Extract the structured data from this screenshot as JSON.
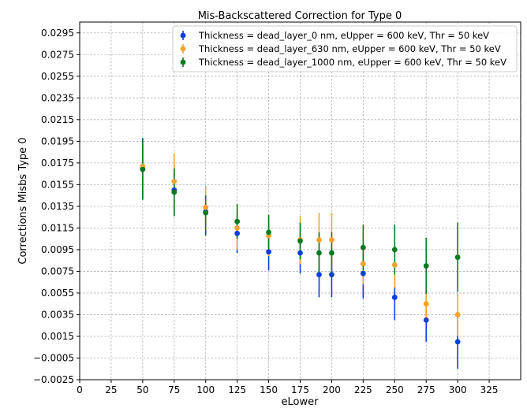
{
  "chart_data": {
    "type": "scatter",
    "title": "Mis-Backscattered Correction for Type 0",
    "xlabel": "eLower",
    "ylabel": "Corrections Misbs Type 0",
    "xlim": [
      0,
      350
    ],
    "ylim": [
      -0.0025,
      0.0305
    ],
    "xticks": [
      0,
      25,
      50,
      75,
      100,
      125,
      150,
      175,
      200,
      225,
      250,
      275,
      300,
      325
    ],
    "xtick_labels": [
      "0",
      "25",
      "50",
      "75",
      "100",
      "125",
      "150",
      "175",
      "200",
      "225",
      "250",
      "275",
      "300",
      "325"
    ],
    "yticks": [
      -0.0025,
      -0.0005,
      0.0015,
      0.0035,
      0.0055,
      0.0075,
      0.0095,
      0.0115,
      0.0135,
      0.0155,
      0.0175,
      0.0195,
      0.0215,
      0.0235,
      0.0255,
      0.0275,
      0.0295
    ],
    "ytick_labels": [
      "−0.0025",
      "−0.0005",
      "0.0015",
      "0.0035",
      "0.0055",
      "0.0075",
      "0.0095",
      "0.0115",
      "0.0135",
      "0.0155",
      "0.0175",
      "0.0195",
      "0.0215",
      "0.0235",
      "0.0255",
      "0.0275",
      "0.0295"
    ],
    "grid": true,
    "legend_position": "top-right",
    "x": [
      50,
      75,
      100,
      125,
      150,
      175,
      190,
      200,
      225,
      250,
      275,
      300
    ],
    "series": [
      {
        "name": "Thickness = dead_layer_0 nm, eUpper = 600 keV, Thr = 50 keV",
        "color": "#0b3fd9",
        "y": [
          0.017,
          0.015,
          0.013,
          0.011,
          0.0093,
          0.0092,
          0.0072,
          0.0072,
          0.0073,
          0.0051,
          0.003,
          0.001
        ],
        "err": [
          0.0028,
          0.0024,
          0.0022,
          0.0018,
          0.0017,
          0.0019,
          0.0021,
          0.0021,
          0.0023,
          0.0021,
          0.002,
          0.0025
        ]
      },
      {
        "name": "Thickness = dead_layer_630 nm, eUpper = 600 keV, Thr = 50 keV",
        "color": "#f5a32e",
        "y": [
          0.0172,
          0.0158,
          0.0134,
          0.0115,
          0.0108,
          0.0104,
          0.0104,
          0.0104,
          0.0082,
          0.0081,
          0.0045,
          0.0035
        ],
        "err": [
          0.002,
          0.0026,
          0.002,
          0.002,
          0.0019,
          0.0022,
          0.0025,
          0.0025,
          0.0019,
          0.0021,
          0.0016,
          0.002
        ]
      },
      {
        "name": "Thickness = dead_layer_1000 nm, eUpper = 600 keV, Thr = 50 keV",
        "color": "#0a7a1f",
        "y": [
          0.0169,
          0.0148,
          0.0129,
          0.0121,
          0.0111,
          0.0103,
          0.0092,
          0.0092,
          0.0097,
          0.0095,
          0.008,
          0.0088
        ],
        "err": [
          0.0028,
          0.0022,
          0.0016,
          0.0016,
          0.0016,
          0.0017,
          0.0019,
          0.0019,
          0.0021,
          0.0023,
          0.0026,
          0.0032
        ]
      }
    ]
  }
}
